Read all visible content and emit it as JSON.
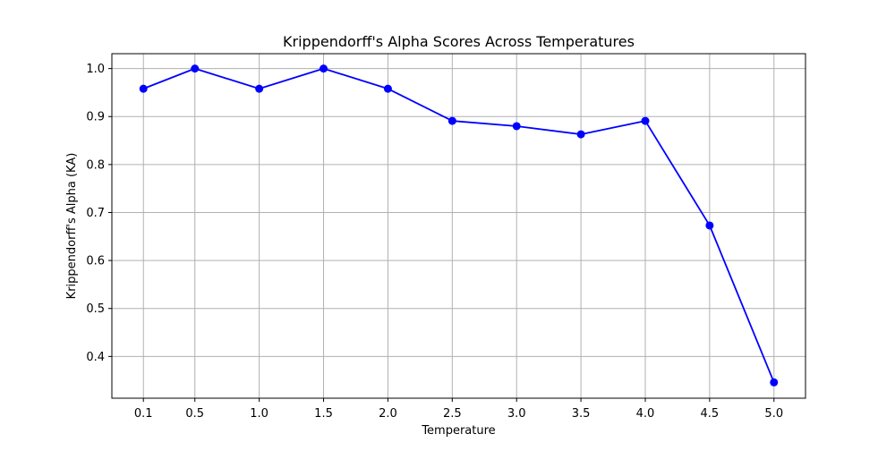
{
  "chart_data": {
    "type": "line",
    "title": "Krippendorff's Alpha Scores Across Temperatures",
    "xlabel": "Temperature",
    "ylabel": "Krippendorff's Alpha (KA)",
    "categories": [
      "0.1",
      "0.5",
      "1.0",
      "1.5",
      "2.0",
      "2.5",
      "3.0",
      "3.5",
      "4.0",
      "4.5",
      "5.0"
    ],
    "x": [
      0.1,
      0.5,
      1.0,
      1.5,
      2.0,
      2.5,
      3.0,
      3.5,
      4.0,
      4.5,
      5.0
    ],
    "values": [
      0.958,
      1.0,
      0.958,
      1.0,
      0.958,
      0.891,
      0.88,
      0.863,
      0.891,
      0.673,
      0.346
    ],
    "yticks": [
      "0.4",
      "0.5",
      "0.6",
      "0.7",
      "0.8",
      "0.9",
      "1.0"
    ],
    "ylim": [
      0.313,
      1.031
    ],
    "grid": true,
    "line_color": "#0000ff",
    "marker": "circle",
    "grid_color": "#b0b0b0"
  }
}
